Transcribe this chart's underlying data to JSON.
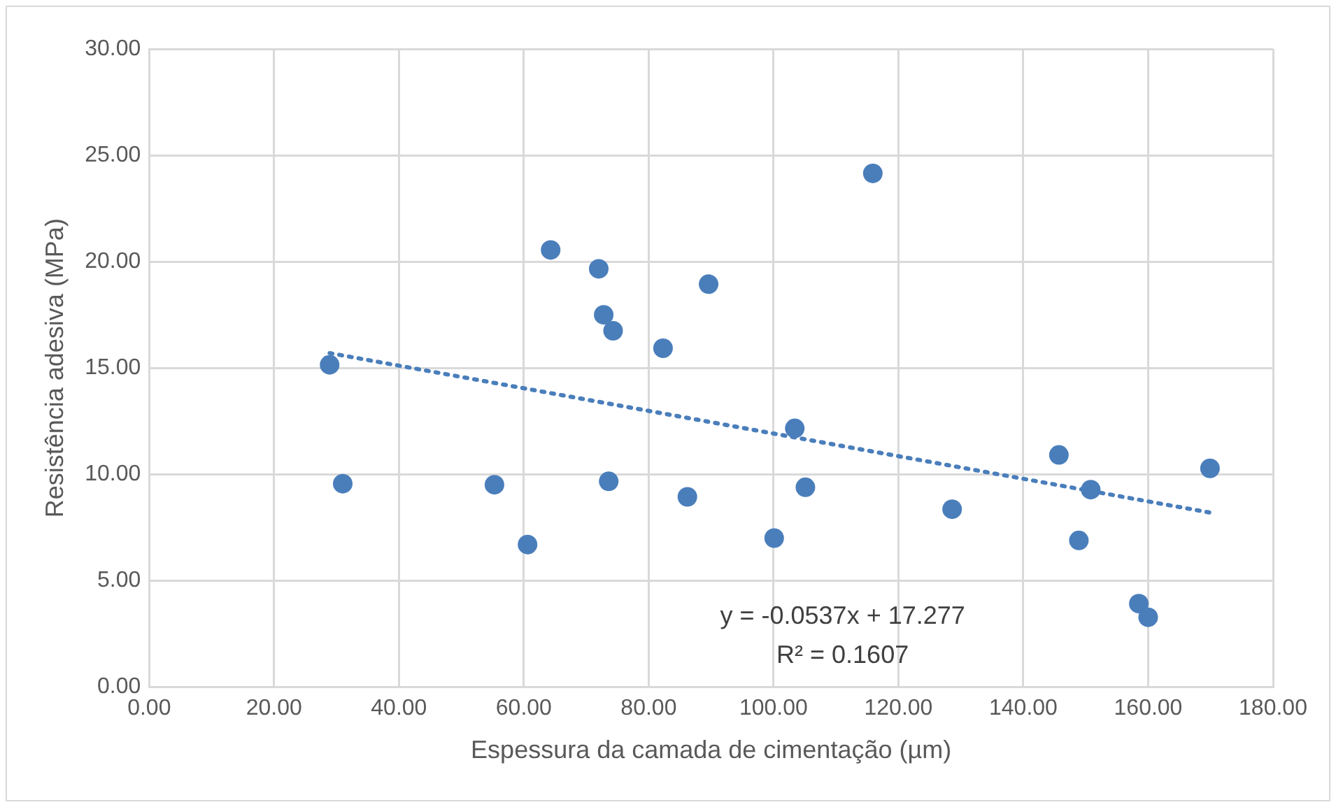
{
  "chart_data": {
    "type": "scatter",
    "xlabel": "Espessura da camada de cimentação (µm)",
    "ylabel": "Resistência adesiva (MPa)",
    "xlim": [
      0,
      180
    ],
    "xticks": [
      {
        "value": 0,
        "label": "0.00"
      },
      {
        "value": 20,
        "label": "20.00"
      },
      {
        "value": 40,
        "label": "40.00"
      },
      {
        "value": 60,
        "label": "60.00"
      },
      {
        "value": 80,
        "label": "80.00"
      },
      {
        "value": 100,
        "label": "100.00"
      },
      {
        "value": 120,
        "label": "120.00"
      },
      {
        "value": 140,
        "label": "140.00"
      },
      {
        "value": 160,
        "label": "160.00"
      },
      {
        "value": 180,
        "label": "180.00"
      }
    ],
    "ylim": [
      0,
      30
    ],
    "yticks": [
      {
        "value": 0,
        "label": "0.00"
      },
      {
        "value": 5,
        "label": "5.00"
      },
      {
        "value": 10,
        "label": "10.00"
      },
      {
        "value": 15,
        "label": "15.00"
      },
      {
        "value": 20,
        "label": "20.00"
      },
      {
        "value": 25,
        "label": "25.00"
      },
      {
        "value": 30,
        "label": "30.00"
      }
    ],
    "grid": true,
    "legend": false,
    "series": [
      {
        "type": "scatter",
        "color": "#4a7ebb",
        "marker": "circle",
        "x": [
          28.9,
          31.0,
          55.3,
          60.6,
          64.3,
          72.0,
          72.8,
          74.3,
          73.6,
          82.3,
          86.2,
          89.6,
          100.1,
          103.4,
          105.1,
          115.9,
          128.6,
          145.7,
          150.8,
          148.9,
          158.5,
          160.0,
          169.9
        ],
        "values": [
          15.15,
          9.56,
          9.51,
          6.7,
          20.55,
          19.66,
          17.5,
          16.75,
          9.67,
          15.93,
          8.94,
          18.94,
          7.0,
          12.16,
          9.39,
          24.15,
          8.36,
          10.91,
          9.28,
          6.89,
          3.92,
          3.28,
          10.28
        ]
      },
      {
        "type": "line",
        "color": "#4a7ebb",
        "marker": "none",
        "line_style": "dotted",
        "x": [
          28.9,
          169.9
        ],
        "values": [
          15.7,
          8.2
        ]
      }
    ],
    "annotations": [
      "y = -0.0537x + 17.277",
      "R² = 0.1607"
    ]
  }
}
